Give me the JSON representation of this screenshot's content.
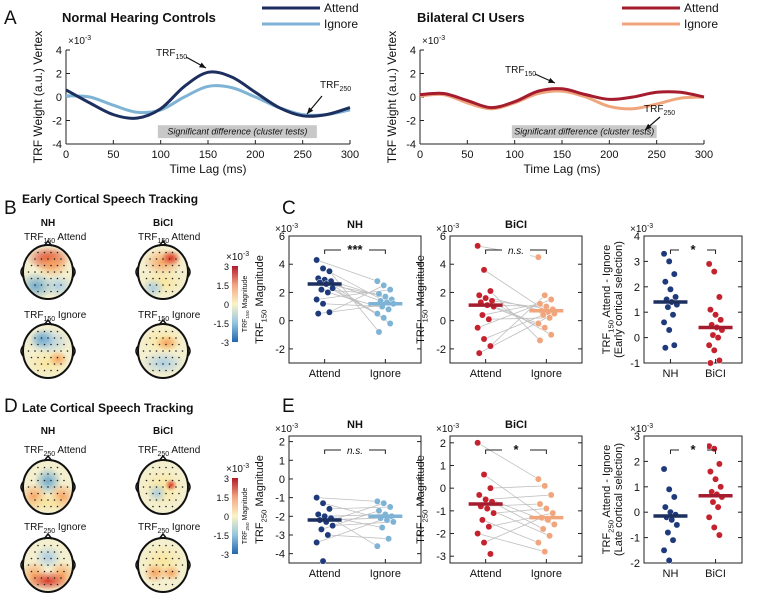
{
  "figure": {
    "panel_labels": [
      "A",
      "B",
      "C",
      "D",
      "E"
    ],
    "exponent_label": "×10",
    "exponents": {
      "minus3": "-3"
    }
  },
  "colors": {
    "nh_attend": "#1c2f5e",
    "nh_ignore": "#7fb3d5",
    "ci_attend": "#a51c2e",
    "ci_ignore": "#f0a57c",
    "nh_dot": "#1f3a7a",
    "ci_dot": "#c4222f",
    "sig_box": "#c8c8c8",
    "line_grey": "#bfbfbf"
  },
  "chart_data": [
    {
      "id": "A-left",
      "type": "line",
      "title": "Normal Hearing Controls",
      "xlabel": "Time Lag (ms)",
      "ylabel": "TRF Weight (a.u.) Vertex",
      "xlim": [
        0,
        300
      ],
      "ylim": [
        -4,
        4
      ],
      "xticks": [
        "0",
        "50",
        "100",
        "150",
        "200",
        "250",
        "300"
      ],
      "yticks": [
        "-4",
        "-2",
        "0",
        "2",
        "4"
      ],
      "legend": [
        "Attend",
        "Ignore"
      ],
      "annotations": [
        "TRF150",
        "TRF250",
        "Significant difference (cluster tests)"
      ],
      "significant_range": [
        97,
        265
      ],
      "series": [
        {
          "name": "Attend",
          "x": [
            0,
            25,
            50,
            75,
            100,
            125,
            150,
            175,
            200,
            225,
            250,
            275,
            300
          ],
          "values": [
            0.6,
            -0.5,
            -1.5,
            -1.8,
            -1.0,
            0.9,
            2.1,
            1.7,
            0.4,
            -0.9,
            -1.6,
            -1.5,
            -0.9
          ]
        },
        {
          "name": "Ignore",
          "x": [
            0,
            25,
            50,
            75,
            100,
            125,
            150,
            175,
            200,
            225,
            250,
            275,
            300
          ],
          "values": [
            0.1,
            0.0,
            -0.7,
            -1.3,
            -1.1,
            0.0,
            0.9,
            0.8,
            0.0,
            -0.9,
            -1.5,
            -1.5,
            -1.1
          ]
        }
      ]
    },
    {
      "id": "A-right",
      "type": "line",
      "title": "Bilateral CI Users",
      "xlabel": "Time Lag (ms)",
      "ylabel": "TRF Weight (a.u.) Vertex",
      "xlim": [
        0,
        300
      ],
      "ylim": [
        -4,
        4
      ],
      "xticks": [
        "0",
        "50",
        "100",
        "150",
        "200",
        "250",
        "300"
      ],
      "yticks": [
        "-4",
        "-2",
        "0",
        "2",
        "4"
      ],
      "legend": [
        "Attend",
        "Ignore"
      ],
      "annotations": [
        "TRF150",
        "TRF250",
        "Significant difference (cluster tests)"
      ],
      "significant_range": [
        97,
        250
      ],
      "series": [
        {
          "name": "Attend",
          "x": [
            0,
            25,
            50,
            75,
            100,
            125,
            150,
            175,
            200,
            225,
            250,
            275,
            300
          ],
          "values": [
            0.2,
            0.3,
            -0.3,
            -0.9,
            -0.4,
            0.5,
            0.7,
            0.2,
            -0.2,
            0.0,
            0.4,
            0.4,
            0.0
          ]
        },
        {
          "name": "Ignore",
          "x": [
            0,
            25,
            50,
            75,
            100,
            125,
            150,
            175,
            200,
            225,
            250,
            275,
            300
          ],
          "values": [
            0.1,
            0.2,
            -0.5,
            -1.0,
            -0.5,
            0.3,
            0.5,
            0.0,
            -0.8,
            -1.0,
            -0.6,
            -0.1,
            0.0
          ]
        }
      ]
    },
    {
      "id": "C-NH",
      "type": "scatter",
      "title": "NH",
      "ylabel": "TRF150 Magnitude",
      "categories": [
        "Attend",
        "Ignore"
      ],
      "ylim": [
        -3,
        6
      ],
      "yticks": [
        "-2",
        "0",
        "2",
        "4",
        "6"
      ],
      "significance": "***",
      "means": [
        2.6,
        1.2
      ],
      "series": [
        {
          "name": "Attend",
          "values": [
            4.3,
            3.7,
            3.5,
            3.0,
            2.9,
            2.8,
            2.7,
            2.6,
            2.3,
            2.2,
            2.0,
            1.5,
            1.2,
            0.6,
            0.5
          ]
        },
        {
          "name": "Ignore",
          "values": [
            2.8,
            2.5,
            2.2,
            1.9,
            1.7,
            1.5,
            1.4,
            1.3,
            1.2,
            1.0,
            0.8,
            0.5,
            0.2,
            -0.2,
            -0.8
          ]
        }
      ]
    },
    {
      "id": "C-BiCI",
      "type": "scatter",
      "title": "BiCI",
      "ylabel": "TRF150 Magnitude",
      "categories": [
        "Attend",
        "Ignore"
      ],
      "ylim": [
        -3,
        6
      ],
      "yticks": [
        "-2",
        "0",
        "2",
        "4",
        "6"
      ],
      "significance": "n.s.",
      "means": [
        1.1,
        0.7
      ],
      "series": [
        {
          "name": "Attend",
          "values": [
            5.3,
            3.6,
            2.1,
            1.8,
            1.6,
            1.4,
            1.3,
            1.1,
            1.0,
            0.4,
            0.1,
            -0.5,
            -1.3,
            -1.8,
            -2.3
          ]
        },
        {
          "name": "Ignore",
          "values": [
            4.5,
            1.8,
            1.5,
            1.2,
            1.0,
            0.8,
            0.7,
            0.6,
            0.5,
            0.4,
            0.2,
            -0.2,
            -0.5,
            -1.0,
            -1.4
          ]
        }
      ]
    },
    {
      "id": "C-diff",
      "type": "scatter",
      "ylabel": "TRF150 Attend - Ignore (Early cortical selection)",
      "categories": [
        "NH",
        "BiCI"
      ],
      "ylim": [
        -1,
        4
      ],
      "yticks": [
        "-1",
        "0",
        "1",
        "2",
        "3",
        "4"
      ],
      "significance": "*",
      "means": [
        1.4,
        0.4
      ],
      "series": [
        {
          "name": "NH",
          "values": [
            3.3,
            3.0,
            2.5,
            2.2,
            1.9,
            1.6,
            1.5,
            1.4,
            1.3,
            1.2,
            0.9,
            0.6,
            0.3,
            -0.3,
            -0.4
          ]
        },
        {
          "name": "BiCI",
          "values": [
            2.9,
            2.6,
            1.6,
            1.1,
            0.9,
            0.7,
            0.5,
            0.4,
            0.3,
            0.1,
            0.0,
            -0.3,
            -0.5,
            -0.9,
            -1.0
          ]
        }
      ]
    },
    {
      "id": "E-NH",
      "type": "scatter",
      "title": "NH",
      "ylabel": "TRF250 Magnitude",
      "categories": [
        "Attend",
        "Ignore"
      ],
      "ylim": [
        -4.5,
        2.3
      ],
      "yticks": [
        "-4",
        "-3",
        "-2",
        "-1",
        "0",
        "1",
        "2"
      ],
      "significance": "n.s.",
      "means": [
        -2.2,
        -2.0
      ],
      "series": [
        {
          "name": "Attend",
          "values": [
            -1.0,
            -1.3,
            -1.6,
            -1.9,
            -2.0,
            -2.1,
            -2.2,
            -2.3,
            -2.5,
            -2.7,
            -3.0,
            -3.4,
            -4.4
          ]
        },
        {
          "name": "Ignore",
          "values": [
            -1.2,
            -1.3,
            -1.5,
            -1.7,
            -1.9,
            -2.0,
            -2.1,
            -2.2,
            -2.3,
            -2.6,
            -3.2,
            -3.6
          ]
        }
      ]
    },
    {
      "id": "E-BiCI",
      "type": "scatter",
      "title": "BiCI",
      "ylabel": "TRF250 Magnitude",
      "categories": [
        "Attend",
        "Ignore"
      ],
      "ylim": [
        -3.3,
        2.3
      ],
      "yticks": [
        "-3",
        "-2",
        "-1",
        "0",
        "1",
        "2"
      ],
      "significance": "*",
      "means": [
        -0.7,
        -1.3
      ],
      "series": [
        {
          "name": "Attend",
          "values": [
            2.0,
            0.6,
            0.0,
            -0.3,
            -0.5,
            -0.6,
            -0.8,
            -0.9,
            -1.1,
            -1.4,
            -1.7,
            -2.0,
            -2.4,
            -2.9
          ]
        },
        {
          "name": "Ignore",
          "values": [
            0.4,
            0.1,
            -0.3,
            -0.7,
            -0.9,
            -1.1,
            -1.3,
            -1.4,
            -1.6,
            -1.8,
            -2.1,
            -2.4,
            -2.8
          ]
        }
      ]
    },
    {
      "id": "E-diff",
      "type": "scatter",
      "ylabel": "TRF250 Attend - Ignore (Late cortical selection)",
      "categories": [
        "NH",
        "BiCI"
      ],
      "ylim": [
        -2,
        3
      ],
      "yticks": [
        "-2",
        "-1",
        "0",
        "1",
        "2",
        "3"
      ],
      "significance": "*",
      "means": [
        -0.15,
        0.65
      ],
      "series": [
        {
          "name": "NH",
          "values": [
            1.7,
            0.9,
            0.6,
            0.2,
            0.0,
            -0.1,
            -0.2,
            -0.3,
            -0.5,
            -0.8,
            -1.1,
            -1.5,
            -1.9
          ]
        },
        {
          "name": "BiCI",
          "values": [
            2.6,
            2.5,
            1.9,
            1.6,
            1.3,
            1.0,
            0.8,
            0.7,
            0.6,
            0.4,
            0.2,
            -0.2,
            -0.6,
            -0.9
          ]
        }
      ]
    }
  ],
  "topos": {
    "B_title": "Early Cortical Speech Tracking",
    "D_title": "Late Cortical Speech Tracking",
    "col_NH": "NH",
    "col_BiCI": "BiCI",
    "B_labels": {
      "attend": "TRF150 Attend",
      "ignore": "TRF150 Ignore"
    },
    "D_labels": {
      "attend": "TRF250 Attend",
      "ignore": "TRF250 Ignore"
    },
    "colorbar_ticks": [
      "3",
      "1.5",
      "0",
      "-1.5",
      "-3"
    ],
    "colorbar_label_B": "TRF150 Magnitude",
    "colorbar_label_D": "TRF250 Magnitude"
  },
  "legend_labels": {
    "attend": "Attend",
    "ignore": "Ignore"
  },
  "sig_text": "Significant difference (cluster tests)",
  "trf150": "TRF150",
  "trf250": "TRF250"
}
